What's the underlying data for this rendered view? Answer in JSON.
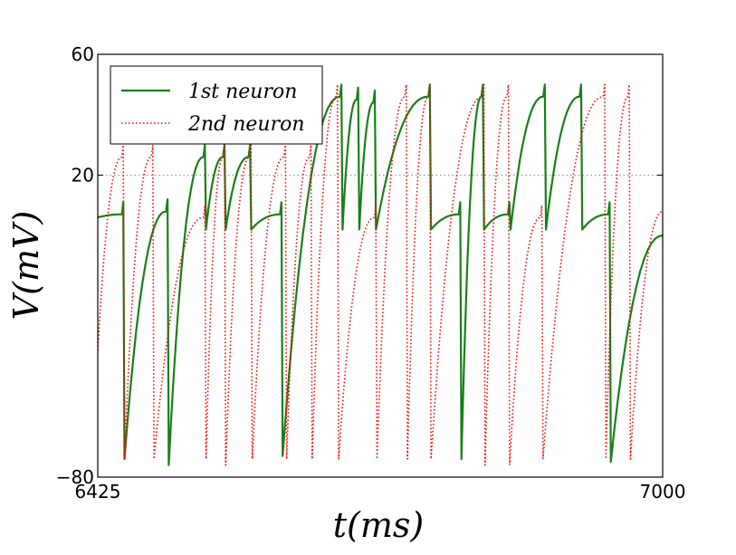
{
  "chart_data": {
    "type": "line",
    "title": "",
    "xlabel": "t(ms)",
    "ylabel": "V(mV)",
    "xlim": [
      6425,
      7000
    ],
    "ylim": [
      -80,
      60
    ],
    "x_ticks": [
      6425,
      7000
    ],
    "x_tick_labels": [
      "6425",
      "7000"
    ],
    "y_ticks": [
      -80,
      20,
      60
    ],
    "y_tick_labels": [
      "−80",
      "20",
      "60"
    ],
    "reference_line": {
      "y": 20,
      "style": "dotted",
      "color": "#888888"
    },
    "legend": {
      "position": "top-left",
      "entries": [
        "1st neuron",
        "2nd neuron"
      ]
    },
    "series": [
      {
        "name": "1st neuron",
        "color": "#1a7f1a",
        "style": "solid",
        "spike_times": [
          6451,
          6496,
          6534,
          6554,
          6580,
          6612,
          6673,
          6690,
          6707,
          6763,
          6794,
          6817,
          6844,
          6880,
          6917,
          6946
        ],
        "spike_peaks": [
          11,
          12,
          30,
          30,
          30,
          11,
          50,
          49,
          48,
          50,
          11,
          50,
          11,
          50,
          50,
          11
        ],
        "reset_values": [
          -74,
          -76,
          2,
          2,
          2,
          -73,
          2,
          2,
          2,
          2,
          -74,
          2,
          2,
          2,
          2,
          -75
        ],
        "start_value": 6,
        "end_value": 0
      },
      {
        "name": "2nd neuron",
        "color": "#ff0000",
        "style": "dotted",
        "spike_times": [
          6451,
          6481,
          6534,
          6554,
          6581,
          6616,
          6642,
          6669,
          6708,
          6739,
          6763,
          6818,
          6843,
          6877,
          6941,
          6966
        ],
        "spike_peaks": [
          30,
          30,
          10,
          30,
          30,
          30,
          30,
          50,
          10,
          50,
          50,
          50,
          50,
          10,
          50,
          50
        ],
        "reset_values": [
          -74,
          -74,
          -74,
          -76,
          -74,
          -74,
          -74,
          -74,
          -74,
          -74,
          -74,
          -76,
          -76,
          -74,
          -74,
          -74
        ],
        "start_value": -38,
        "end_value": 8
      }
    ]
  }
}
